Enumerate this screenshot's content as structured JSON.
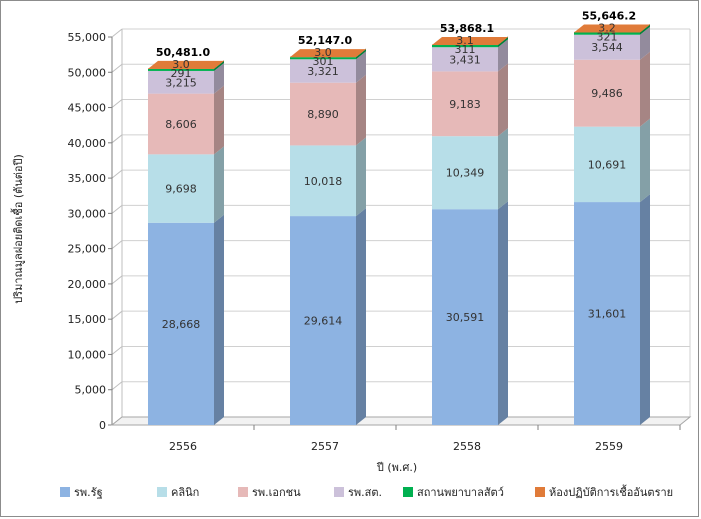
{
  "chart_data": {
    "type": "bar",
    "stacked": true,
    "categories": [
      "2556",
      "2557",
      "2558",
      "2559"
    ],
    "series": [
      {
        "name": "รพ.รัฐ",
        "color": "#8db3e2",
        "values": [
          28668,
          29614,
          30591,
          31601
        ],
        "labels": [
          "28,668",
          "29,614",
          "30,591",
          "31,601"
        ]
      },
      {
        "name": "คลินิก",
        "color": "#b7dee8",
        "values": [
          9698,
          10018,
          10349,
          10691
        ],
        "labels": [
          "9,698",
          "10,018",
          "10,349",
          "10,691"
        ]
      },
      {
        "name": "รพ.เอกชน",
        "color": "#e6b9b8",
        "values": [
          8606,
          8890,
          9183,
          9486
        ],
        "labels": [
          "8,606",
          "8,890",
          "9,183",
          "9,486"
        ]
      },
      {
        "name": "รพ.สต.",
        "color": "#ccc1da",
        "values": [
          3215,
          3321,
          3431,
          3544
        ],
        "labels": [
          "3,215",
          "3,321",
          "3,431",
          "3,544"
        ]
      },
      {
        "name": "สถานพยาบาลสัตว์",
        "color": "#00b050",
        "values": [
          291,
          301,
          311,
          321
        ],
        "labels": [
          "291",
          "301",
          "311",
          "321"
        ]
      },
      {
        "name": "ห้องปฏิบัติการเชื้ออันตราย",
        "color": "#e07b39",
        "values": [
          3.0,
          3.0,
          3.1,
          3.2
        ],
        "labels": [
          "3.0",
          "3.0",
          "3.1",
          "3.2"
        ]
      }
    ],
    "totals": [
      "50,481.0",
      "52,147.0",
      "53,868.1",
      "55,646.2"
    ],
    "ylim": [
      0,
      55000
    ],
    "yticks": [
      "0",
      "5,000",
      "10,000",
      "15,000",
      "20,000",
      "25,000",
      "30,000",
      "35,000",
      "40,000",
      "45,000",
      "50,000",
      "55,000"
    ],
    "xlabel": "ปี (พ.ศ.)",
    "ylabel": "ปริมาณมูลฝอยติดเชื้อ (ตันต่อปี)",
    "legend_position": "bottom"
  }
}
